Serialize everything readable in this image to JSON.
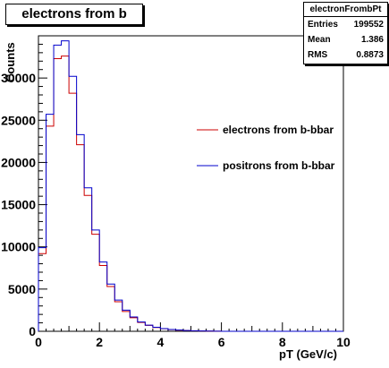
{
  "chart_data": {
    "type": "histogram",
    "title": "electrons from b",
    "xlabel": "pT (GeV/c)",
    "ylabel": "Counts",
    "xlim": [
      0,
      10
    ],
    "ylim": [
      0,
      35000
    ],
    "bin_width": 0.25,
    "x_ticks": [
      "0",
      "2",
      "4",
      "6",
      "8",
      "10"
    ],
    "y_ticks": [
      "0",
      "5000",
      "10000",
      "15000",
      "20000",
      "25000",
      "30000"
    ],
    "legend_position": "right",
    "stats": {
      "name": "electronFrombPt",
      "rows": [
        {
          "label": "Entries",
          "value": "199552"
        },
        {
          "label": "Mean",
          "value": "1.386"
        },
        {
          "label": "RMS",
          "value": "0.8873"
        }
      ]
    },
    "series": [
      {
        "name": "electrons from b-bbar",
        "color": "#cc0000",
        "values": [
          9200,
          24300,
          32300,
          32600,
          28200,
          22100,
          16100,
          11500,
          7800,
          5300,
          3500,
          2350,
          1600,
          1050,
          700,
          450,
          300,
          200,
          130,
          90,
          55,
          35,
          20,
          12,
          0,
          0,
          0,
          0,
          0,
          0,
          0,
          0,
          0,
          0,
          0,
          0,
          0,
          0,
          0,
          0
        ]
      },
      {
        "name": "positrons from b-bbar",
        "color": "#0000cc",
        "values": [
          9900,
          25700,
          33900,
          34400,
          30200,
          23300,
          17000,
          12000,
          8200,
          5600,
          3700,
          2500,
          1700,
          1100,
          730,
          480,
          320,
          210,
          140,
          95,
          60,
          38,
          22,
          13,
          0,
          0,
          0,
          0,
          0,
          0,
          0,
          0,
          0,
          0,
          0,
          0,
          0,
          0,
          0,
          0
        ]
      }
    ]
  }
}
